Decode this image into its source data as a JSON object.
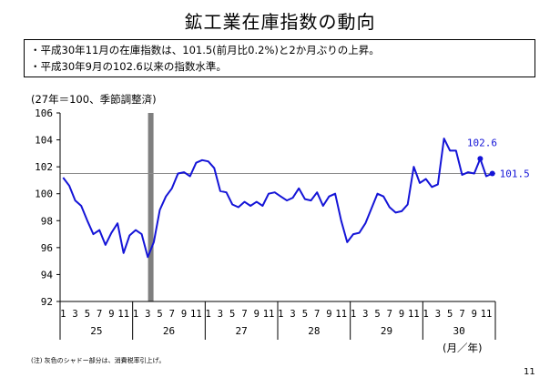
{
  "title": "鉱工業在庫指数の動向",
  "summary": [
    "・平成30年11月の在庫指数は、101.5(前月比0.2%)と2か月ぶりの上昇。",
    "・平成30年9月の102.6以来の指数水準。"
  ],
  "unit_note": "(27年＝100、季節調整済)",
  "axis_unit": "(月／年)",
  "footnote": "(注) 灰色のシャドー部分は、消費税率引上げ。",
  "page_number": "11",
  "colors": {
    "line": "#1414d7",
    "shade": "#7f7f7f",
    "reference": "#8c8c8c"
  },
  "chart_data": {
    "type": "line",
    "y_ticks": [
      "92",
      "94",
      "96",
      "98",
      "100",
      "102",
      "104",
      "106"
    ],
    "ylim": [
      92,
      106
    ],
    "month_ticks": [
      "1",
      "3",
      "5",
      "7",
      "9",
      "11"
    ],
    "years": [
      "25",
      "26",
      "27",
      "28",
      "29",
      "30"
    ],
    "reference_line": 101.5,
    "shaded_period": {
      "start_month_index": 15,
      "label": "消費税率引上げ"
    },
    "series": [
      {
        "values": [
          101.2,
          100.6,
          99.5,
          99.1,
          98.0,
          97.0,
          97.3,
          96.2,
          97.1,
          97.8,
          95.6,
          96.9,
          97.3,
          97.0,
          95.3,
          96.4,
          98.8,
          99.8,
          100.4,
          101.5,
          101.6,
          101.3,
          102.3,
          102.5,
          102.4,
          101.9,
          100.2,
          100.1,
          99.2,
          99.0,
          99.4,
          99.1,
          99.4,
          99.1,
          100.0,
          100.1,
          99.8,
          99.5,
          99.7,
          100.4,
          99.6,
          99.5,
          100.1,
          99.1,
          99.8,
          100.0,
          98.0,
          96.4,
          97.0,
          97.1,
          97.8,
          98.9,
          100.0,
          99.8,
          99.0,
          98.6,
          98.7,
          99.2,
          102.0,
          100.8,
          101.1,
          100.5,
          100.7,
          104.1,
          103.2,
          103.2,
          101.4,
          101.6,
          101.5,
          102.6,
          101.3,
          101.5
        ]
      }
    ],
    "annotations": [
      {
        "label": "102.6",
        "index": 69,
        "value": 102.6
      },
      {
        "label": "101.5",
        "index": 71,
        "value": 101.5
      }
    ]
  }
}
